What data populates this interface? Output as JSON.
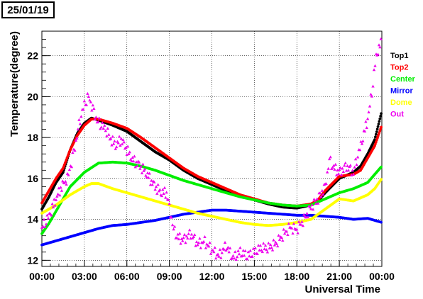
{
  "date_label": "25/01/19",
  "chart_data": {
    "type": "scatter",
    "xlabel": "Universal Time",
    "ylabel": "Temperature(degree)",
    "xlim": [
      0,
      24
    ],
    "ylim": [
      11.7,
      23.2
    ],
    "x_ticks": [
      0,
      3,
      6,
      9,
      12,
      15,
      18,
      21,
      24
    ],
    "x_tick_labels": [
      "00:00",
      "03:00",
      "06:00",
      "09:00",
      "12:00",
      "15:00",
      "18:00",
      "21:00",
      "00:00"
    ],
    "y_ticks": [
      12,
      14,
      16,
      18,
      20,
      22
    ],
    "y_tick_labels": [
      "12",
      "14",
      "16",
      "18",
      "20",
      "22"
    ],
    "grid": true,
    "legend_position": "right",
    "series": [
      {
        "name": "Top1",
        "color": "#000000",
        "x": [
          0,
          0.5,
          1,
          1.5,
          2,
          2.5,
          3,
          3.5,
          4,
          5,
          6,
          7,
          8,
          9,
          10,
          11,
          12,
          13,
          14,
          15,
          16,
          17,
          18,
          19,
          19.5,
          20,
          21,
          22,
          22.5,
          23,
          23.5,
          24
        ],
        "y": [
          14.5,
          15.1,
          15.8,
          16.3,
          17.4,
          18.2,
          18.7,
          18.95,
          18.85,
          18.6,
          18.3,
          17.8,
          17.3,
          16.9,
          16.4,
          16.0,
          15.7,
          15.4,
          15.15,
          14.95,
          14.75,
          14.6,
          14.55,
          14.7,
          14.9,
          15.3,
          16.0,
          16.3,
          16.6,
          17.2,
          17.9,
          19.3
        ]
      },
      {
        "name": "Top2",
        "color": "#ff0000",
        "x": [
          0,
          0.5,
          1,
          1.5,
          2,
          2.5,
          3,
          3.5,
          4,
          5,
          6,
          7,
          8,
          9,
          10,
          11,
          12,
          13,
          14,
          15,
          16,
          17,
          18,
          19,
          19.5,
          20,
          21,
          22,
          22.5,
          23,
          23.5,
          24
        ],
        "y": [
          14.8,
          15.4,
          16.0,
          16.5,
          17.4,
          18.1,
          18.6,
          18.9,
          18.9,
          18.7,
          18.45,
          18.0,
          17.5,
          17.0,
          16.5,
          16.1,
          15.8,
          15.5,
          15.2,
          15.0,
          14.8,
          14.7,
          14.65,
          14.75,
          14.95,
          15.4,
          16.1,
          16.2,
          16.4,
          17.0,
          17.6,
          18.6
        ]
      },
      {
        "name": "Center",
        "color": "#00ee00",
        "x": [
          0,
          0.5,
          1,
          1.5,
          2,
          3,
          4,
          5,
          6,
          7,
          8,
          9,
          10,
          11,
          12,
          13,
          14,
          15,
          16,
          17,
          18,
          19,
          20,
          21,
          22,
          23,
          24
        ],
        "y": [
          13.3,
          13.8,
          14.4,
          15.0,
          15.6,
          16.3,
          16.75,
          16.8,
          16.75,
          16.6,
          16.4,
          16.15,
          15.9,
          15.7,
          15.5,
          15.3,
          15.1,
          14.95,
          14.8,
          14.7,
          14.65,
          14.7,
          15.0,
          15.3,
          15.5,
          15.8,
          16.6
        ]
      },
      {
        "name": "Mirror",
        "color": "#0000ff",
        "x": [
          0,
          1,
          2,
          3,
          4,
          5,
          6,
          7,
          8,
          9,
          10,
          11,
          12,
          13,
          14,
          15,
          16,
          17,
          18,
          19,
          20,
          21,
          22,
          23,
          23.5,
          24
        ],
        "y": [
          12.75,
          12.95,
          13.15,
          13.35,
          13.55,
          13.7,
          13.75,
          13.85,
          13.95,
          14.1,
          14.25,
          14.35,
          14.45,
          14.45,
          14.4,
          14.35,
          14.3,
          14.25,
          14.2,
          14.2,
          14.15,
          14.1,
          14.0,
          14.05,
          13.95,
          13.85
        ]
      },
      {
        "name": "Dome",
        "color": "#ffff00",
        "x": [
          0,
          1,
          2,
          3,
          3.5,
          4,
          5,
          6,
          7,
          8,
          9,
          10,
          11,
          12,
          13,
          14,
          15,
          16,
          17,
          18,
          19,
          20,
          21,
          22,
          23,
          23.5,
          24
        ],
        "y": [
          14.3,
          14.7,
          15.2,
          15.6,
          15.75,
          15.75,
          15.5,
          15.3,
          15.1,
          14.9,
          14.7,
          14.5,
          14.3,
          14.15,
          14.0,
          13.85,
          13.75,
          13.7,
          13.75,
          13.85,
          14.0,
          14.5,
          15.0,
          14.9,
          15.2,
          15.5,
          16.0
        ]
      },
      {
        "name": "Out",
        "color": "#ee00ee",
        "x": [
          0,
          0.3,
          0.6,
          1,
          1.4,
          1.8,
          2.1,
          2.4,
          2.7,
          3,
          3.3,
          3.6,
          3.9,
          4.2,
          4.5,
          4.8,
          5.2,
          5.6,
          6,
          6.4,
          6.8,
          7.2,
          7.6,
          8,
          8.4,
          8.8,
          9,
          9.3,
          9.6,
          10,
          10.5,
          11,
          11.5,
          12,
          12.5,
          13,
          13.5,
          14,
          14.5,
          15,
          15.5,
          16,
          16.5,
          17,
          17.5,
          18,
          18.5,
          19,
          19.5,
          20,
          20.3,
          20.6,
          21,
          21.5,
          22,
          22.3,
          22.6,
          23,
          23.3,
          23.6,
          24
        ],
        "y": [
          13.6,
          13.9,
          14.3,
          15.0,
          15.6,
          16.0,
          16.8,
          17.8,
          18.9,
          19.6,
          20.0,
          19.4,
          18.8,
          18.6,
          18.4,
          18.0,
          17.6,
          17.9,
          17.4,
          16.9,
          16.7,
          16.4,
          16.0,
          15.6,
          15.3,
          15.3,
          14.6,
          13.5,
          13.1,
          13.0,
          13.3,
          12.8,
          12.9,
          12.5,
          12.2,
          12.7,
          12.1,
          12.4,
          12.2,
          12.4,
          12.6,
          12.6,
          12.8,
          13.2,
          13.6,
          13.5,
          14.0,
          14.6,
          15.0,
          15.6,
          16.9,
          16.5,
          16.3,
          16.6,
          16.3,
          17.1,
          17.8,
          18.9,
          20.2,
          22.0,
          22.7
        ]
      }
    ]
  }
}
